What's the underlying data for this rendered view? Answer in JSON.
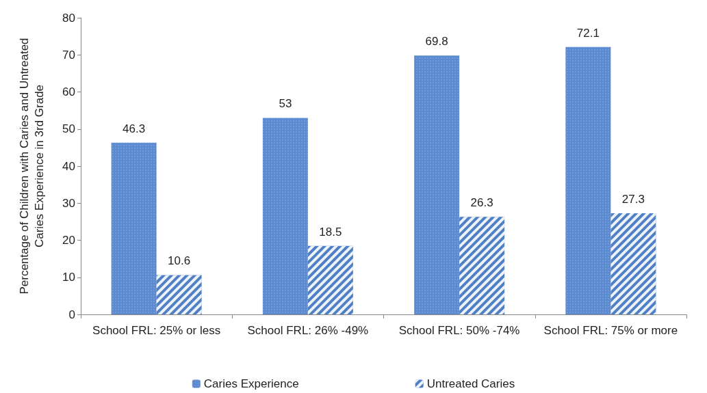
{
  "chart_data": {
    "type": "bar",
    "ylabel": "Percentage of Children with Caries and Untreated Caries Experience in 3rd Grade",
    "categories": [
      "School FRL: 25% or less",
      "School FRL: 26% -49%",
      "School FRL: 50% -74%",
      "School FRL: 75% or more"
    ],
    "series": [
      {
        "name": "Caries Experience",
        "color": "#5b8ad0",
        "values": [
          46.3,
          53,
          69.8,
          72.1
        ]
      },
      {
        "name": "Untreated Caries",
        "color": "#4f7fc4",
        "values": [
          10.6,
          18.5,
          26.3,
          27.3
        ]
      }
    ],
    "ylim": [
      0,
      80
    ],
    "yticks": [
      0,
      10,
      20,
      30,
      40,
      50,
      60,
      70,
      80
    ],
    "grid": false,
    "legend": "bottom",
    "data_labels": true
  }
}
